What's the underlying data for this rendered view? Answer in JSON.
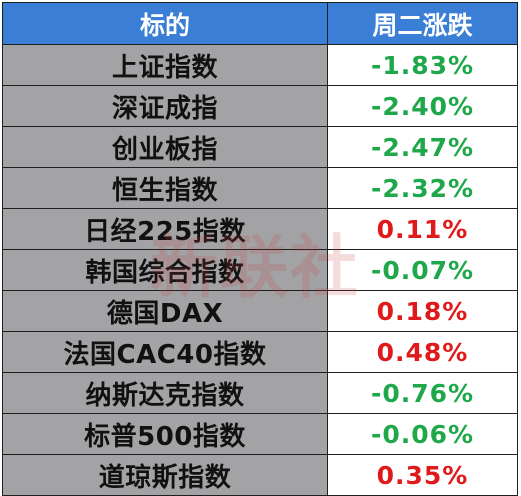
{
  "table": {
    "headers": {
      "name": "标的",
      "change": "周二涨跌"
    },
    "rows": [
      {
        "name": "上证指数",
        "change": "-1.83%",
        "direction": "down"
      },
      {
        "name": "深证成指",
        "change": "-2.40%",
        "direction": "down"
      },
      {
        "name": "创业板指",
        "change": "-2.47%",
        "direction": "down"
      },
      {
        "name": "恒生指数",
        "change": "-2.32%",
        "direction": "down"
      },
      {
        "name": "日经225指数",
        "change": "0.11%",
        "direction": "up"
      },
      {
        "name": "韩国综合指数",
        "change": "-0.07%",
        "direction": "down"
      },
      {
        "name": "德国DAX",
        "change": "0.18%",
        "direction": "up"
      },
      {
        "name": "法国CAC40指数",
        "change": "0.48%",
        "direction": "up"
      },
      {
        "name": "纳斯达克指数",
        "change": "-0.76%",
        "direction": "down"
      },
      {
        "name": "标普500指数",
        "change": "-0.06%",
        "direction": "down"
      },
      {
        "name": "道琼斯指数",
        "change": "0.35%",
        "direction": "up"
      }
    ]
  },
  "watermark": "新联社",
  "colors": {
    "header_bg": "#3a7fd5",
    "name_bg": "#a3a3a6",
    "negative": "#1ea84a",
    "positive": "#e01a1a"
  }
}
